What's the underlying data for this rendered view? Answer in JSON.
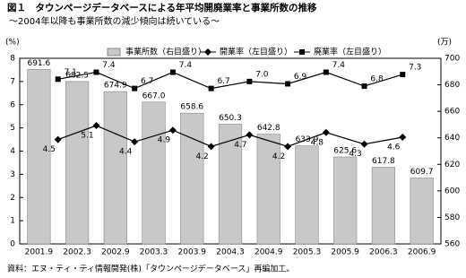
{
  "chart_data": {
    "type": "bar-line",
    "title": "図１　タウンページデータベースによる年平均開廃業率と事業所数の推移",
    "subtitle": "～2004年以降も事業所数の減少傾向は続いている～",
    "ylabel": "(%)",
    "y2label": "(万)",
    "source": "資料：エヌ・ティ・ティ情報開発(株)「タウンページデータベース」再編加工。",
    "categories": [
      "2001.9",
      "2002.3",
      "2002.9",
      "2003.3",
      "2003.9",
      "2004.3",
      "2004.9",
      "2005.3",
      "2005.9",
      "2006.3",
      "2006.9"
    ],
    "ylim": [
      0,
      8
    ],
    "yticks": [
      0,
      1,
      2,
      3,
      4,
      5,
      6,
      7,
      8
    ],
    "y2lim": [
      560,
      700
    ],
    "y2ticks": [
      560,
      580,
      600,
      620,
      640,
      660,
      680,
      700
    ],
    "series": [
      {
        "name": "事業所数（右目盛り）",
        "type": "bar",
        "axis": "y2",
        "color": "#c8c8c8",
        "values": [
          691.6,
          682.5,
          674.9,
          667.0,
          658.6,
          650.3,
          642.8,
          633.9,
          625.6,
          617.8,
          609.7
        ],
        "value_labels": [
          "691.6",
          "682.5",
          "674.9",
          "667.0",
          "658.6",
          "650.3",
          "642.8",
          "633.9",
          "625.6",
          "617.8",
          "609.7"
        ]
      },
      {
        "name": "開業率（左目盛り）",
        "type": "line",
        "marker": "diamond",
        "color": "#000000",
        "values": [
          null,
          4.5,
          5.1,
          4.4,
          4.9,
          4.2,
          4.7,
          4.2,
          4.8,
          4.3,
          4.6
        ],
        "value_labels": [
          null,
          "4.5",
          "5.1",
          "4.4",
          "4.9",
          "4.2",
          "4.7",
          "4.2",
          "4.8",
          "4.3",
          "4.6"
        ]
      },
      {
        "name": "廃業率（左目盛り）",
        "type": "line",
        "marker": "square",
        "color": "#000000",
        "values": [
          null,
          7.1,
          7.4,
          6.7,
          7.4,
          6.7,
          7.0,
          6.9,
          7.4,
          6.8,
          7.3
        ],
        "value_labels": [
          null,
          "7.1",
          "7.4",
          "6.7",
          "7.4",
          "6.7",
          "7.0",
          "6.9",
          "7.4",
          "6.8",
          "7.3"
        ]
      }
    ]
  }
}
